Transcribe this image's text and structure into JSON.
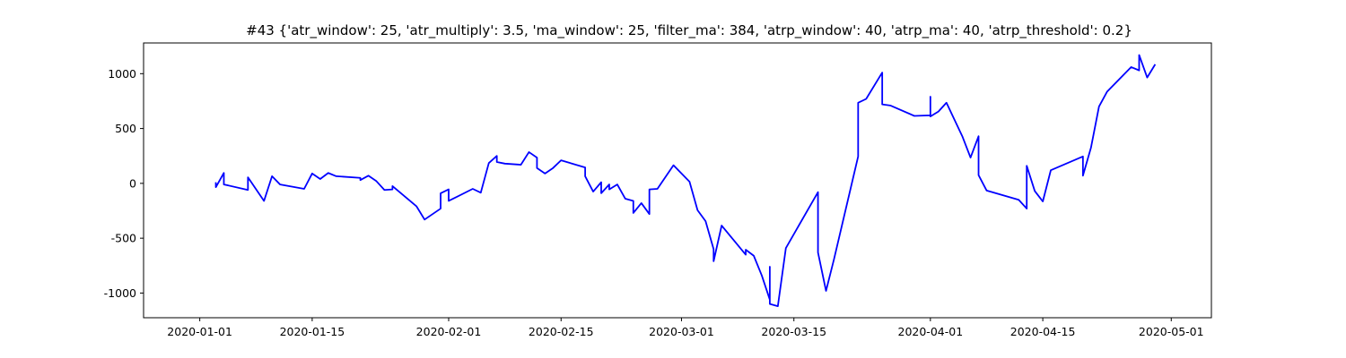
{
  "chart_data": {
    "type": "line",
    "title": "#43 {'atr_window': 25, 'atr_multiply': 3.5, 'ma_window': 25, 'filter_ma': 384, 'atrp_window': 40, 'atrp_ma': 40, 'atrp_threshold': 0.2}",
    "color": "#0000ff",
    "x": [
      "2020-01-03",
      "2020-01-03",
      "2020-01-04",
      "2020-01-04",
      "2020-01-07",
      "2020-01-07",
      "2020-01-09",
      "2020-01-10",
      "2020-01-11",
      "2020-01-14",
      "2020-01-15",
      "2020-01-15",
      "2020-01-16",
      "2020-01-17",
      "2020-01-18",
      "2020-01-21",
      "2020-01-21",
      "2020-01-22",
      "2020-01-23",
      "2020-01-24",
      "2020-01-25",
      "2020-01-25",
      "2020-01-28",
      "2020-01-29",
      "2020-01-31",
      "2020-01-31",
      "2020-02-01",
      "2020-02-01",
      "2020-02-04",
      "2020-02-05",
      "2020-02-06",
      "2020-02-07",
      "2020-02-07",
      "2020-02-08",
      "2020-02-10",
      "2020-02-11",
      "2020-02-12",
      "2020-02-12",
      "2020-02-13",
      "2020-02-14",
      "2020-02-15",
      "2020-02-18",
      "2020-02-18",
      "2020-02-19",
      "2020-02-20",
      "2020-02-20",
      "2020-02-21",
      "2020-02-21",
      "2020-02-22",
      "2020-02-23",
      "2020-02-24",
      "2020-02-24",
      "2020-02-25",
      "2020-02-26",
      "2020-02-26",
      "2020-02-27",
      "2020-02-29",
      "2020-03-02",
      "2020-03-03",
      "2020-03-04",
      "2020-03-05",
      "2020-03-05",
      "2020-03-06",
      "2020-03-09",
      "2020-03-09",
      "2020-03-10",
      "2020-03-11",
      "2020-03-12",
      "2020-03-12",
      "2020-03-12",
      "2020-03-13",
      "2020-03-14",
      "2020-03-18",
      "2020-03-18",
      "2020-03-19",
      "2020-03-20",
      "2020-03-23",
      "2020-03-23",
      "2020-03-24",
      "2020-03-26",
      "2020-03-26",
      "2020-03-27",
      "2020-03-30",
      "2020-04-01",
      "2020-04-01",
      "2020-04-01",
      "2020-04-02",
      "2020-04-03",
      "2020-04-05",
      "2020-04-06",
      "2020-04-07",
      "2020-04-07",
      "2020-04-08",
      "2020-04-12",
      "2020-04-13",
      "2020-04-13",
      "2020-04-14",
      "2020-04-15",
      "2020-04-16",
      "2020-04-20",
      "2020-04-20",
      "2020-04-21",
      "2020-04-22",
      "2020-04-23",
      "2020-04-26",
      "2020-04-27",
      "2020-04-27",
      "2020-04-28",
      "2020-04-29"
    ],
    "values": [
      10,
      -35,
      95,
      -10,
      -60,
      55,
      -160,
      65,
      -10,
      -50,
      90,
      90,
      40,
      95,
      65,
      50,
      30,
      70,
      20,
      -60,
      -55,
      -25,
      -210,
      -330,
      -230,
      -90,
      -55,
      -160,
      -50,
      -85,
      185,
      250,
      195,
      180,
      170,
      285,
      235,
      140,
      90,
      140,
      210,
      145,
      65,
      -75,
      10,
      -90,
      -10,
      -55,
      -10,
      -140,
      -160,
      -270,
      -180,
      -280,
      -55,
      -50,
      165,
      15,
      -245,
      -345,
      -600,
      -710,
      -385,
      -650,
      -605,
      -660,
      -840,
      -1060,
      -760,
      -1100,
      -1120,
      -590,
      -80,
      -630,
      -980,
      -690,
      245,
      735,
      770,
      1010,
      720,
      710,
      615,
      620,
      790,
      610,
      655,
      735,
      425,
      235,
      430,
      75,
      -65,
      -150,
      -230,
      160,
      -70,
      -165,
      120,
      245,
      70,
      325,
      700,
      835,
      1060,
      1030,
      1170,
      965,
      1085
    ],
    "xlim": [
      "2019-12-25",
      "2020-05-06"
    ],
    "xticks": [
      "2020-01-01",
      "2020-01-15",
      "2020-02-01",
      "2020-02-15",
      "2020-03-01",
      "2020-03-15",
      "2020-04-01",
      "2020-04-15",
      "2020-05-01"
    ],
    "ylim": [
      -1225,
      1280
    ],
    "yticks": [
      -1000,
      -500,
      0,
      500,
      1000
    ]
  }
}
